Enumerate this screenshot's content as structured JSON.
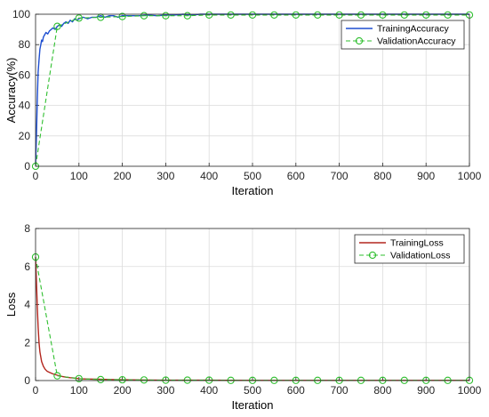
{
  "chart_data": [
    {
      "type": "line",
      "xlabel": "Iteration",
      "ylabel": "Accuracy(%)",
      "xlim": [
        0,
        1000
      ],
      "ylim": [
        0,
        100
      ],
      "xticks": [
        0,
        100,
        200,
        300,
        400,
        500,
        600,
        700,
        800,
        900,
        1000
      ],
      "yticks": [
        0,
        20,
        40,
        60,
        80,
        100
      ],
      "grid": true,
      "legend_position": "top-right",
      "series": [
        {
          "name": "TrainingAccuracy",
          "style": "solid",
          "color": "#1f4fd1",
          "x": [
            0,
            2,
            4,
            6,
            8,
            10,
            12,
            14,
            16,
            18,
            20,
            24,
            28,
            32,
            36,
            40,
            45,
            50,
            55,
            60,
            65,
            70,
            75,
            80,
            85,
            90,
            95,
            100,
            110,
            120,
            130,
            140,
            150,
            160,
            170,
            180,
            190,
            200,
            220,
            240,
            260,
            280,
            300,
            320,
            340,
            360,
            380,
            400,
            450,
            500,
            550,
            600,
            650,
            700,
            750,
            800,
            850,
            900,
            950,
            1000
          ],
          "y": [
            1,
            20,
            45,
            62,
            70,
            77,
            80,
            83,
            82,
            85,
            86,
            88,
            87,
            89,
            90,
            91,
            90,
            92,
            93,
            92,
            94,
            95,
            94,
            96,
            95,
            97,
            96,
            97,
            98,
            97,
            98,
            98,
            99,
            98,
            99,
            99,
            98,
            99,
            99,
            99,
            99.5,
            99,
            99.5,
            99.5,
            100,
            99.5,
            100,
            100,
            100,
            100,
            100,
            100,
            100,
            100,
            100,
            100,
            100,
            100,
            100,
            100
          ]
        },
        {
          "name": "ValidationAccuracy",
          "style": "dashed-circle",
          "color": "#2fbf2f",
          "x": [
            0,
            50,
            100,
            150,
            200,
            250,
            300,
            350,
            400,
            450,
            500,
            550,
            600,
            650,
            700,
            750,
            800,
            850,
            900,
            950,
            1000
          ],
          "y": [
            0,
            92,
            97.5,
            98,
            98.5,
            99,
            99,
            99,
            99.5,
            99.5,
            99.5,
            99.5,
            99.5,
            99.5,
            99.5,
            99.5,
            99.5,
            99.5,
            99.5,
            99.5,
            99.5
          ]
        }
      ]
    },
    {
      "type": "line",
      "xlabel": "Iteration",
      "ylabel": "Loss",
      "xlim": [
        0,
        1000
      ],
      "ylim": [
        0,
        8
      ],
      "xticks": [
        0,
        100,
        200,
        300,
        400,
        500,
        600,
        700,
        800,
        900,
        1000
      ],
      "yticks": [
        0,
        2,
        4,
        6,
        8
      ],
      "grid": true,
      "legend_position": "top-right",
      "series": [
        {
          "name": "TrainingLoss",
          "style": "solid",
          "color": "#b3261e",
          "x": [
            0,
            2,
            4,
            6,
            8,
            10,
            14,
            18,
            22,
            26,
            30,
            40,
            50,
            60,
            70,
            80,
            90,
            100,
            120,
            140,
            160,
            180,
            200,
            250,
            300,
            350,
            400,
            500,
            600,
            700,
            800,
            900,
            1000
          ],
          "y": [
            6.5,
            5.2,
            3.8,
            2.8,
            2.0,
            1.5,
            1.0,
            0.75,
            0.6,
            0.5,
            0.45,
            0.35,
            0.28,
            0.22,
            0.18,
            0.15,
            0.13,
            0.1,
            0.08,
            0.07,
            0.06,
            0.05,
            0.04,
            0.03,
            0.02,
            0.02,
            0.02,
            0.01,
            0.01,
            0.01,
            0.01,
            0.01,
            0.01
          ]
        },
        {
          "name": "ValidationLoss",
          "style": "dashed-circle",
          "color": "#2fbf2f",
          "x": [
            0,
            50,
            100,
            150,
            200,
            250,
            300,
            350,
            400,
            450,
            500,
            550,
            600,
            650,
            700,
            750,
            800,
            850,
            900,
            950,
            1000
          ],
          "y": [
            6.5,
            0.25,
            0.1,
            0.05,
            0.04,
            0.03,
            0.02,
            0.02,
            0.02,
            0.01,
            0.01,
            0.01,
            0.01,
            0.01,
            0.01,
            0.01,
            0.01,
            0.01,
            0.01,
            0.01,
            0.01
          ]
        }
      ]
    }
  ]
}
